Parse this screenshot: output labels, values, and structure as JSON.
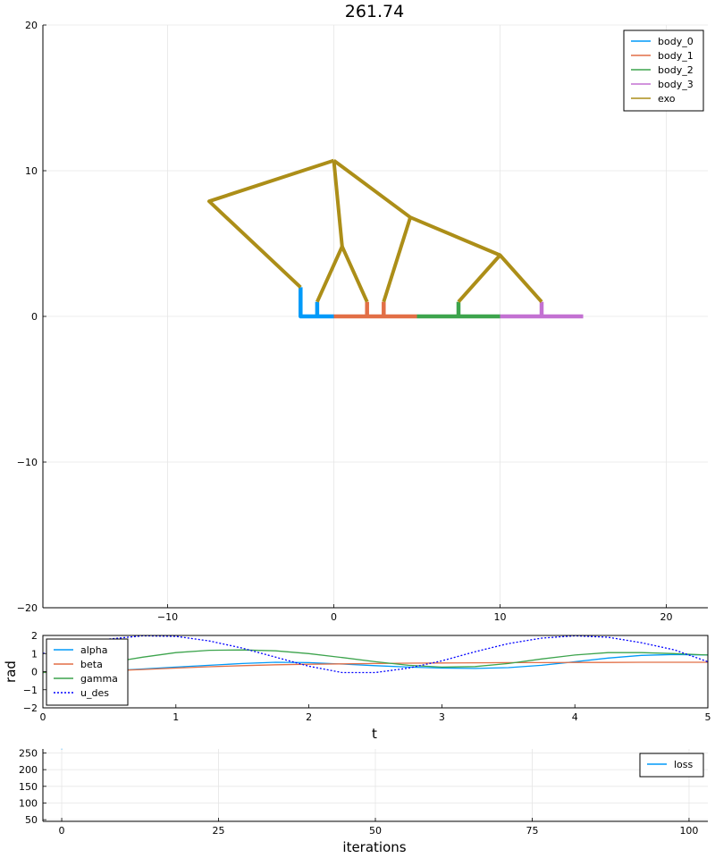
{
  "chart_data": [
    {
      "type": "line",
      "title": "261.74",
      "xlabel": "",
      "ylabel": "",
      "xlim": [
        -17.5,
        22.5
      ],
      "ylim": [
        -20,
        20
      ],
      "xticks": [
        -10,
        0,
        10,
        20
      ],
      "yticks": [
        -20,
        -10,
        0,
        10,
        20
      ],
      "xtick_labels": [
        "−10",
        "0",
        "10",
        "20"
      ],
      "ytick_labels": [
        "−20",
        "−10",
        "0",
        "10",
        "20"
      ],
      "grid": true,
      "legend_position": "top-right",
      "series": [
        {
          "name": "body_0",
          "color": "#009af9",
          "segments": [
            [
              [
                -2,
                2
              ],
              [
                -2,
                0
              ],
              [
                0,
                0
              ]
            ],
            [
              [
                -1,
                1
              ],
              [
                -1,
                0
              ]
            ]
          ]
        },
        {
          "name": "body_1",
          "color": "#e26f46",
          "segments": [
            [
              [
                0,
                0
              ],
              [
                5,
                0
              ]
            ],
            [
              [
                2,
                1
              ],
              [
                2,
                0
              ]
            ],
            [
              [
                3,
                1
              ],
              [
                3,
                0
              ]
            ]
          ]
        },
        {
          "name": "body_2",
          "color": "#3da44d",
          "segments": [
            [
              [
                5,
                0
              ],
              [
                10,
                0
              ]
            ],
            [
              [
                7.5,
                1
              ],
              [
                7.5,
                0
              ]
            ]
          ]
        },
        {
          "name": "body_3",
          "color": "#c371d2",
          "segments": [
            [
              [
                10,
                0
              ],
              [
                15,
                0
              ]
            ],
            [
              [
                12.5,
                1
              ],
              [
                12.5,
                0
              ]
            ]
          ]
        },
        {
          "name": "exo",
          "color": "#ac8e18",
          "segments": [
            [
              [
                -2,
                2
              ],
              [
                -7.5,
                7.9
              ],
              [
                0,
                10.7
              ]
            ],
            [
              [
                0,
                10.7
              ],
              [
                0.5,
                4.8
              ]
            ],
            [
              [
                -1,
                1
              ],
              [
                0.5,
                4.8
              ],
              [
                2,
                1
              ]
            ],
            [
              [
                0,
                10.7
              ],
              [
                4.6,
                6.8
              ],
              [
                10,
                4.2
              ]
            ],
            [
              [
                4.6,
                6.8
              ],
              [
                3,
                1
              ]
            ],
            [
              [
                7.5,
                1
              ],
              [
                10,
                4.2
              ],
              [
                12.5,
                1
              ]
            ]
          ]
        }
      ]
    },
    {
      "type": "line",
      "title": "",
      "xlabel": "t",
      "ylabel": "rad",
      "xlim": [
        0,
        5
      ],
      "ylim": [
        -2,
        2
      ],
      "xticks": [
        0,
        1,
        2,
        3,
        4,
        5
      ],
      "yticks": [
        -2,
        -1,
        0,
        1,
        2
      ],
      "xtick_labels": [
        "0",
        "1",
        "2",
        "3",
        "4",
        "5"
      ],
      "ytick_labels": [
        "−2",
        "−1",
        "0",
        "1",
        "2"
      ],
      "grid": false,
      "legend_position": "bottom-left",
      "x": [
        0,
        0.25,
        0.5,
        0.75,
        1,
        1.25,
        1.5,
        1.75,
        2,
        2.25,
        2.5,
        2.75,
        3,
        3.25,
        3.5,
        3.75,
        4,
        4.25,
        4.5,
        4.75,
        5
      ],
      "series": [
        {
          "name": "alpha",
          "color": "#009af9",
          "dash": "none",
          "values": [
            -0.05,
            0.0,
            0.05,
            0.15,
            0.25,
            0.35,
            0.45,
            0.52,
            0.5,
            0.42,
            0.33,
            0.25,
            0.2,
            0.18,
            0.22,
            0.35,
            0.55,
            0.75,
            0.9,
            0.95,
            0.92
          ]
        },
        {
          "name": "beta",
          "color": "#e26f46",
          "dash": "none",
          "values": [
            -0.05,
            0.0,
            0.05,
            0.12,
            0.2,
            0.27,
            0.33,
            0.38,
            0.41,
            0.43,
            0.45,
            0.47,
            0.48,
            0.49,
            0.5,
            0.5,
            0.51,
            0.51,
            0.52,
            0.52,
            0.52
          ]
        },
        {
          "name": "gamma",
          "color": "#3da44d",
          "dash": "none",
          "values": [
            -0.05,
            0.2,
            0.5,
            0.8,
            1.05,
            1.18,
            1.2,
            1.15,
            1.0,
            0.78,
            0.55,
            0.35,
            0.25,
            0.28,
            0.45,
            0.7,
            0.92,
            1.05,
            1.05,
            1.0,
            0.92
          ]
        },
        {
          "name": "u_des",
          "color": "#0000ff",
          "dash": "2,2",
          "values": [
            1.0,
            1.5,
            1.8,
            1.98,
            1.95,
            1.7,
            1.3,
            0.8,
            0.3,
            -0.05,
            -0.05,
            0.2,
            0.6,
            1.1,
            1.55,
            1.85,
            1.98,
            1.9,
            1.6,
            1.2,
            0.55
          ]
        }
      ]
    },
    {
      "type": "line",
      "title": "",
      "xlabel": "iterations",
      "ylabel": "",
      "xlim": [
        -3,
        103
      ],
      "ylim": [
        45,
        262
      ],
      "xticks": [
        0,
        25,
        50,
        75,
        100
      ],
      "yticks": [
        50,
        100,
        150,
        200,
        250
      ],
      "xtick_labels": [
        "0",
        "25",
        "50",
        "75",
        "100"
      ],
      "ytick_labels": [
        "50",
        "100",
        "150",
        "200",
        "250"
      ],
      "grid": true,
      "legend_position": "top-right",
      "series": [
        {
          "name": "loss",
          "color": "#009af9",
          "x": [
            0
          ],
          "values": [
            261.74
          ]
        }
      ]
    }
  ]
}
